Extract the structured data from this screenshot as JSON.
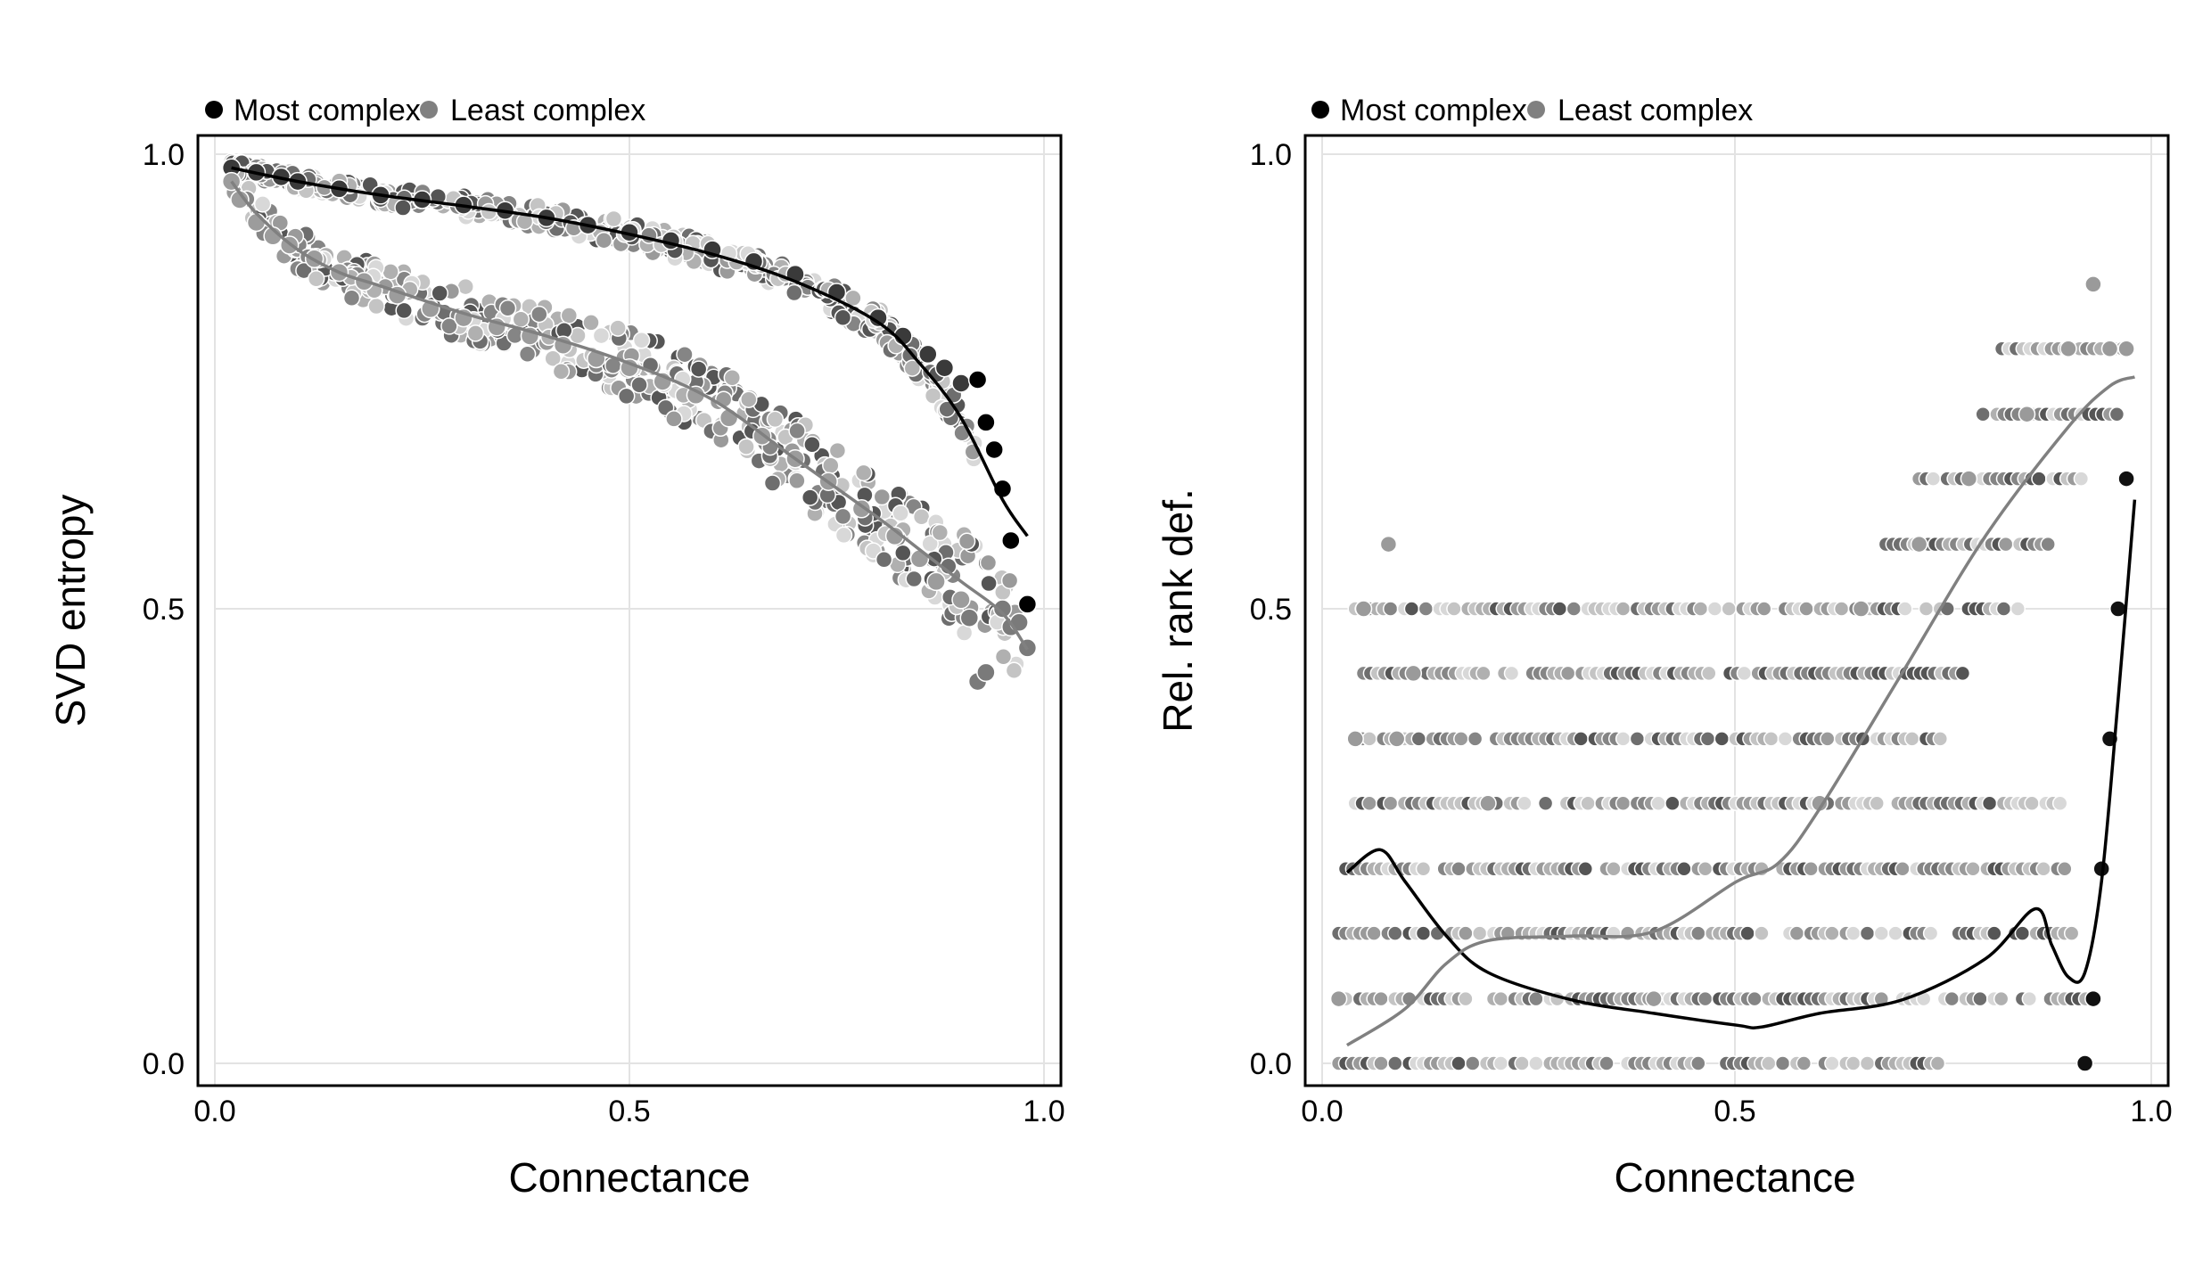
{
  "figure": {
    "background": "#ffffff"
  },
  "chart_data": [
    {
      "type": "scatter",
      "xlabel": "Connectance",
      "ylabel": "SVD entropy",
      "xlim": [
        -0.02,
        1.02
      ],
      "ylim": [
        -0.02,
        1.02
      ],
      "xticks": [
        0.0,
        0.5,
        1.0
      ],
      "yticks": [
        0.0,
        0.5,
        1.0
      ],
      "xtick_labels": [
        "0.0",
        "0.5",
        "1.0"
      ],
      "ytick_labels": [
        "0.0",
        "0.5",
        "1.0"
      ],
      "grid": true,
      "legend_placement": "top-left, above plot",
      "series": [
        {
          "name": "Most complex",
          "color": "#000000",
          "trend": {
            "x": [
              0.02,
              0.1,
              0.2,
              0.3,
              0.4,
              0.5,
              0.6,
              0.7,
              0.8,
              0.85,
              0.9,
              0.95,
              0.98
            ],
            "y": [
              0.985,
              0.97,
              0.955,
              0.943,
              0.93,
              0.912,
              0.89,
              0.86,
              0.815,
              0.77,
              0.71,
              0.62,
              0.58
            ]
          },
          "points": {
            "x": [
              0.02,
              0.05,
              0.08,
              0.1,
              0.15,
              0.2,
              0.25,
              0.3,
              0.35,
              0.4,
              0.45,
              0.5,
              0.55,
              0.6,
              0.65,
              0.7,
              0.75,
              0.8,
              0.83,
              0.86,
              0.88,
              0.9,
              0.92,
              0.93,
              0.94,
              0.95,
              0.96,
              0.98
            ],
            "y": [
              0.985,
              0.98,
              0.975,
              0.97,
              0.962,
              0.955,
              0.95,
              0.944,
              0.938,
              0.93,
              0.922,
              0.914,
              0.905,
              0.895,
              0.882,
              0.868,
              0.848,
              0.82,
              0.8,
              0.78,
              0.765,
              0.748,
              0.752,
              0.705,
              0.675,
              0.632,
              0.575,
              0.505
            ]
          }
        },
        {
          "name": "Least complex",
          "color": "#808080",
          "trend": {
            "x": [
              0.02,
              0.05,
              0.1,
              0.15,
              0.2,
              0.3,
              0.4,
              0.5,
              0.6,
              0.7,
              0.8,
              0.85,
              0.9,
              0.95,
              0.98
            ],
            "y": [
              0.97,
              0.935,
              0.895,
              0.87,
              0.855,
              0.825,
              0.8,
              0.77,
              0.73,
              0.665,
              0.6,
              0.565,
              0.53,
              0.495,
              0.455
            ]
          },
          "points": {
            "x": [
              0.02,
              0.03,
              0.05,
              0.07,
              0.09,
              0.12,
              0.15,
              0.18,
              0.22,
              0.26,
              0.3,
              0.34,
              0.38,
              0.42,
              0.46,
              0.5,
              0.54,
              0.58,
              0.62,
              0.66,
              0.7,
              0.74,
              0.78,
              0.82,
              0.85,
              0.87,
              0.9,
              0.91,
              0.92,
              0.93,
              0.95,
              0.96,
              0.97,
              0.98
            ],
            "y": [
              0.97,
              0.95,
              0.925,
              0.91,
              0.9,
              0.885,
              0.87,
              0.86,
              0.845,
              0.83,
              0.82,
              0.81,
              0.8,
              0.79,
              0.775,
              0.765,
              0.75,
              0.735,
              0.71,
              0.69,
              0.665,
              0.64,
              0.61,
              0.58,
              0.555,
              0.53,
              0.51,
              0.49,
              0.42,
              0.43,
              0.5,
              0.48,
              0.485,
              0.457
            ]
          }
        }
      ]
    },
    {
      "type": "scatter",
      "xlabel": "Connectance",
      "ylabel": "Rel. rank def.",
      "xlim": [
        -0.02,
        1.02
      ],
      "ylim": [
        -0.02,
        1.02
      ],
      "xticks": [
        0.0,
        0.5,
        1.0
      ],
      "yticks": [
        0.0,
        0.5,
        1.0
      ],
      "xtick_labels": [
        "0.0",
        "0.5",
        "1.0"
      ],
      "ytick_labels": [
        "0.0",
        "0.5",
        "1.0"
      ],
      "grid": true,
      "legend_placement": "top-left, above plot",
      "series": [
        {
          "name": "Most complex",
          "color": "#000000",
          "trend": {
            "x": [
              0.03,
              0.07,
              0.1,
              0.15,
              0.2,
              0.3,
              0.4,
              0.5,
              0.53,
              0.6,
              0.7,
              0.8,
              0.86,
              0.88,
              0.9,
              0.92,
              0.94,
              0.96,
              0.98
            ],
            "y": [
              0.21,
              0.235,
              0.2,
              0.14,
              0.1,
              0.07,
              0.055,
              0.042,
              0.04,
              0.055,
              0.07,
              0.115,
              0.17,
              0.13,
              0.095,
              0.1,
              0.2,
              0.4,
              0.62
            ]
          },
          "points": {
            "x": [
              0.92,
              0.93,
              0.94,
              0.95,
              0.96,
              0.97
            ],
            "y": [
              0.0,
              0.071,
              0.214,
              0.357,
              0.5,
              0.643
            ]
          }
        },
        {
          "name": "Least complex",
          "color": "#808080",
          "trend": {
            "x": [
              0.03,
              0.1,
              0.15,
              0.2,
              0.3,
              0.4,
              0.5,
              0.55,
              0.6,
              0.7,
              0.8,
              0.9,
              0.95,
              0.98
            ],
            "y": [
              0.02,
              0.06,
              0.11,
              0.135,
              0.14,
              0.145,
              0.2,
              0.22,
              0.28,
              0.43,
              0.58,
              0.7,
              0.745,
              0.755
            ]
          },
          "points": {
            "x": [
              0.02,
              0.04,
              0.08,
              0.11,
              0.05,
              0.09,
              0.2,
              0.4,
              0.6,
              0.65,
              0.72,
              0.78,
              0.85,
              0.9,
              0.93,
              0.95,
              0.97
            ],
            "y": [
              0.071,
              0.357,
              0.571,
              0.429,
              0.5,
              0.357,
              0.286,
              0.071,
              0.286,
              0.5,
              0.571,
              0.643,
              0.714,
              0.786,
              0.857,
              0.786,
              0.786
            ]
          }
        }
      ]
    }
  ]
}
